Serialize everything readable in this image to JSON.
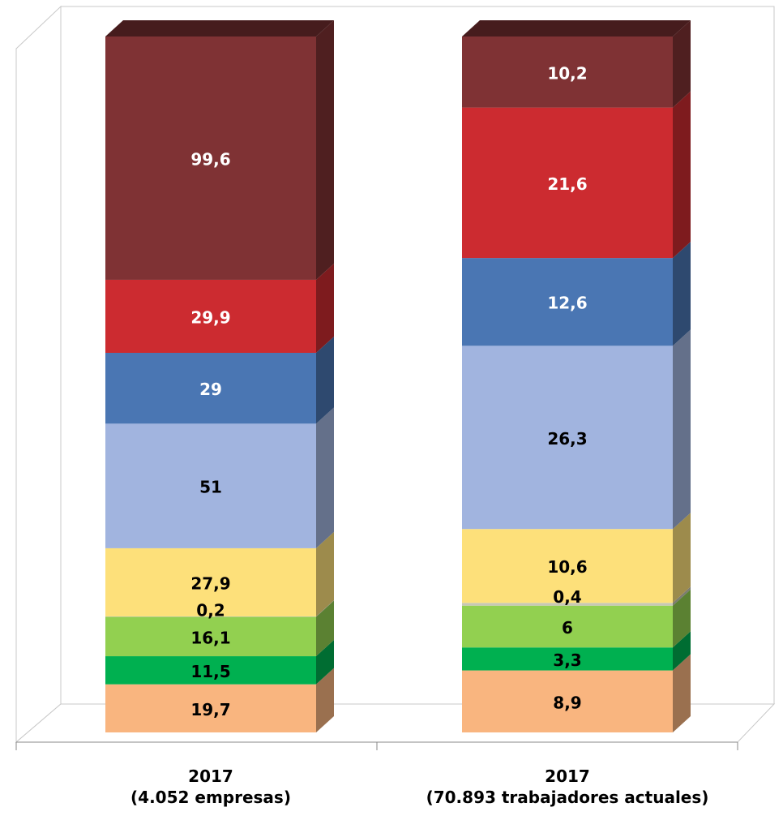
{
  "chart_data": {
    "type": "stacked100",
    "categories": [
      "2017\n(4.052 empresas)",
      "2017\n(70.893 trabajadores actuales)"
    ],
    "series": [
      {
        "color": "#f9b57f",
        "label_color": "#000000",
        "values": [
          19.7,
          8.9
        ],
        "value_labels": [
          "19,7",
          "8,9"
        ]
      },
      {
        "color": "#00b050",
        "label_color": "#000000",
        "values": [
          11.5,
          3.3
        ],
        "value_labels": [
          "11,5",
          "3,3"
        ]
      },
      {
        "color": "#92d050",
        "label_color": "#000000",
        "values": [
          16.1,
          6
        ],
        "value_labels": [
          "16,1",
          "6"
        ]
      },
      {
        "color": "#c8c8b4",
        "label_color": "#000000",
        "values": [
          0.2,
          0.4
        ],
        "value_labels": [
          "0,2",
          "0,4"
        ]
      },
      {
        "color": "#fde07a",
        "label_color": "#000000",
        "values": [
          27.9,
          10.6
        ],
        "value_labels": [
          "27,9",
          "10,6"
        ]
      },
      {
        "color": "#a1b4df",
        "label_color": "#000000",
        "values": [
          51,
          26.3
        ],
        "value_labels": [
          "51",
          "26,3"
        ]
      },
      {
        "color": "#4a76b3",
        "label_color": "#ffffff",
        "values": [
          29,
          12.6
        ],
        "value_labels": [
          "29",
          "12,6"
        ]
      },
      {
        "color": "#cc2b30",
        "label_color": "#ffffff",
        "values": [
          29.9,
          21.6
        ],
        "value_labels": [
          "29,9",
          "21,6"
        ]
      },
      {
        "color": "#7f3234",
        "label_color": "#ffffff",
        "values": [
          99.6,
          10.2
        ],
        "value_labels": [
          "99,6",
          "10,2"
        ]
      }
    ]
  }
}
